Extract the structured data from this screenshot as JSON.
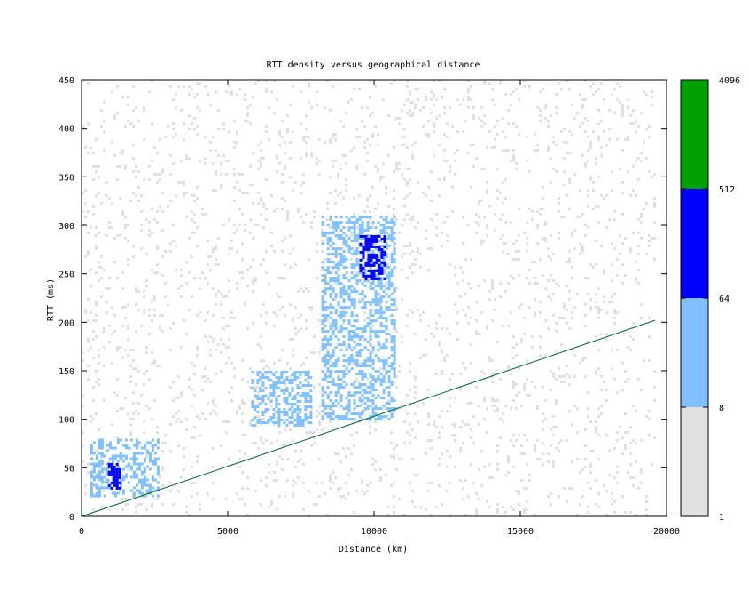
{
  "chart_data": {
    "type": "heatmap",
    "title": "RTT density versus geographical distance",
    "xlabel": "Distance (km)",
    "ylabel": "RTT (ms)",
    "xlim": [
      0,
      20000
    ],
    "ylim": [
      0,
      450
    ],
    "x_ticks": [
      "0",
      "5000",
      "10000",
      "15000",
      "20000"
    ],
    "y_ticks": [
      "0",
      "50",
      "100",
      "150",
      "200",
      "250",
      "300",
      "350",
      "400",
      "450"
    ],
    "grid": false,
    "colorbar": {
      "scale": "log",
      "ticks": [
        "1",
        "8",
        "64",
        "512",
        "4096"
      ],
      "bands": [
        {
          "from": 1,
          "to": 8,
          "color": "#e0e0e0"
        },
        {
          "from": 8,
          "to": 64,
          "color": "#80c0ff"
        },
        {
          "from": 64,
          "to": 512,
          "color": "#0000ff"
        },
        {
          "from": 512,
          "to": 4096,
          "color": "#00a000"
        }
      ]
    },
    "density_regions": [
      {
        "level": 1,
        "x": [
          0,
          19600
        ],
        "y": [
          0,
          450
        ]
      },
      {
        "level": 2,
        "x": [
          300,
          2600
        ],
        "y": [
          20,
          80
        ]
      },
      {
        "level": 2,
        "x": [
          5800,
          7800
        ],
        "y": [
          95,
          150
        ]
      },
      {
        "level": 2,
        "x": [
          8200,
          10700
        ],
        "y": [
          100,
          310
        ]
      },
      {
        "level": 3,
        "x": [
          900,
          1300
        ],
        "y": [
          30,
          55
        ]
      },
      {
        "level": 3,
        "x": [
          9500,
          10400
        ],
        "y": [
          245,
          290
        ]
      }
    ],
    "reference_line": {
      "color": "#006030",
      "x": [
        0,
        19600
      ],
      "y": [
        0,
        202
      ]
    }
  }
}
